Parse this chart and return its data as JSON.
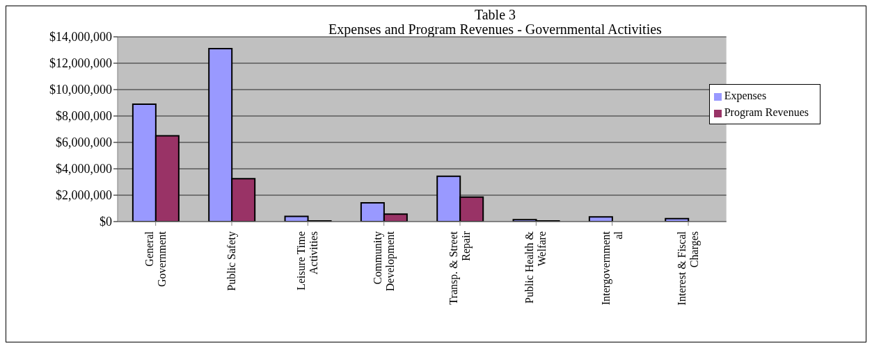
{
  "chart_data": {
    "type": "bar",
    "title": "Table 3",
    "subtitle": "Expenses and Program Revenues - Governmental Activities",
    "categories": [
      "General\nGovernment",
      "Public Safety",
      "Leisure Time\nActivities",
      "Community\nDevelopment",
      "Transp. & Street\nRepair",
      "Public Health &\nWelfare",
      "Intergovernment\nal",
      "Interest & Fiscal\nCharges"
    ],
    "series": [
      {
        "name": "Expenses",
        "color": "#9999ff",
        "values": [
          8900000,
          13100000,
          400000,
          1420000,
          3430000,
          150000,
          350000,
          220000
        ]
      },
      {
        "name": "Program Revenues",
        "color": "#993366",
        "values": [
          6500000,
          3250000,
          50000,
          560000,
          1850000,
          50000,
          null,
          null
        ]
      }
    ],
    "ylim": [
      0,
      14000000
    ],
    "yticks": [
      {
        "value": 0,
        "label": "$0"
      },
      {
        "value": 2000000,
        "label": "$2,000,000"
      },
      {
        "value": 4000000,
        "label": "$4,000,000"
      },
      {
        "value": 6000000,
        "label": "$6,000,000"
      },
      {
        "value": 8000000,
        "label": "$8,000,000"
      },
      {
        "value": 10000000,
        "label": "$10,000,000"
      },
      {
        "value": 12000000,
        "label": "$12,000,000"
      },
      {
        "value": 14000000,
        "label": "$14,000,000"
      }
    ],
    "grid": "y",
    "legend": "top right"
  }
}
